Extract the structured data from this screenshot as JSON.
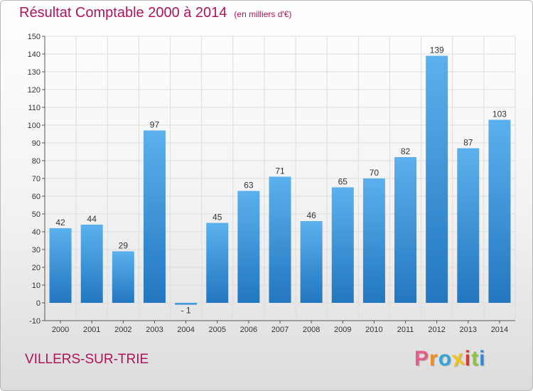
{
  "header": {
    "title": "Résultat Comptable 2000 à 2014",
    "subtitle": "(en milliers d'€)"
  },
  "footer": {
    "town": "VILLERS-SUR-TRIE",
    "logo_letters": [
      "P",
      "r",
      "o",
      "x",
      "i",
      "t",
      "i"
    ],
    "logo_colors": [
      "#e35d8a",
      "#f28c1b",
      "#2ea7d8",
      "#f5c21a",
      "#d83a2d",
      "#8cc43f",
      "#2e8ad8"
    ]
  },
  "chart_data": {
    "type": "bar",
    "title": "Résultat Comptable 2000 à 2014",
    "subtitle": "(en milliers d'€)",
    "categories": [
      "2000",
      "2001",
      "2002",
      "2003",
      "2004",
      "2005",
      "2006",
      "2007",
      "2008",
      "2009",
      "2010",
      "2011",
      "2012",
      "2013",
      "2014"
    ],
    "values": [
      42,
      44,
      29,
      97,
      -1,
      45,
      63,
      71,
      46,
      65,
      70,
      82,
      139,
      87,
      103
    ],
    "ylim": [
      -10,
      150
    ],
    "yticks": [
      -10,
      0,
      10,
      20,
      30,
      40,
      50,
      60,
      70,
      80,
      90,
      100,
      110,
      120,
      130,
      140,
      150
    ],
    "grid": true,
    "bar_color": "#3a8fd8",
    "grid_color": "#dddddd",
    "label_negatives_with_space": true
  }
}
